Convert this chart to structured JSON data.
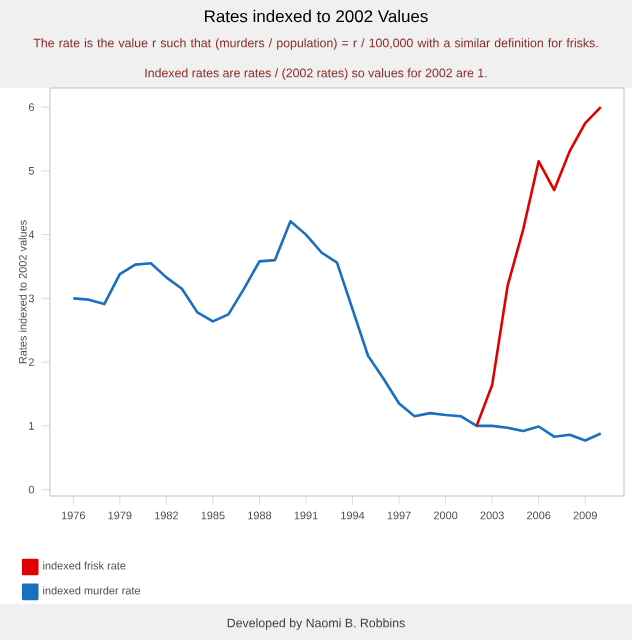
{
  "chart_data": {
    "type": "line",
    "title": "Rates indexed to 2002 Values",
    "subtitle": "The rate is the value r such that (murders  / population) = r / 100,000 with a similar definition for frisks.",
    "annotations": [
      "Indexed rates are rates / (2002 rates) so values for 2002 are 1.",
      "Developed by Naomi B. Robbins"
    ],
    "ylabel": "Rates indexed to 2002 values",
    "xlim": [
      1974.5,
      2011.5
    ],
    "xticks": [
      1976,
      1979,
      1982,
      1985,
      1988,
      1991,
      1994,
      1997,
      2000,
      2003,
      2006,
      2009
    ],
    "ylim": [
      -0.1,
      6.3
    ],
    "yticks": [
      0,
      1,
      2,
      3,
      4,
      5,
      6
    ],
    "legend": "bottom",
    "series": [
      {
        "name": "indexed frisk rate",
        "color": "#e00000",
        "x": [
          2002,
          2003,
          2004,
          2005,
          2006,
          2007,
          2008,
          2009,
          2010
        ],
        "values": [
          1.0,
          1.64,
          3.2,
          4.08,
          5.15,
          4.7,
          5.31,
          5.75,
          6.0
        ]
      },
      {
        "name": "indexed murder rate",
        "color": "#1a6fbf",
        "x": [
          1976,
          1977,
          1978,
          1979,
          1980,
          1981,
          1982,
          1983,
          1984,
          1985,
          1986,
          1987,
          1988,
          1989,
          1990,
          1991,
          1992,
          1993,
          1994,
          1995,
          1996,
          1997,
          1998,
          1999,
          2000,
          2001,
          2002,
          2003,
          2004,
          2005,
          2006,
          2007,
          2008,
          2009,
          2010
        ],
        "values": [
          3.0,
          2.98,
          2.91,
          3.38,
          3.53,
          3.55,
          3.33,
          3.15,
          2.78,
          2.64,
          2.75,
          3.15,
          3.58,
          3.6,
          4.21,
          4.0,
          3.72,
          3.56,
          2.83,
          2.1,
          1.74,
          1.35,
          1.15,
          1.2,
          1.17,
          1.15,
          1.0,
          1.0,
          0.97,
          0.92,
          0.99,
          0.83,
          0.86,
          0.77,
          0.88
        ]
      }
    ]
  }
}
